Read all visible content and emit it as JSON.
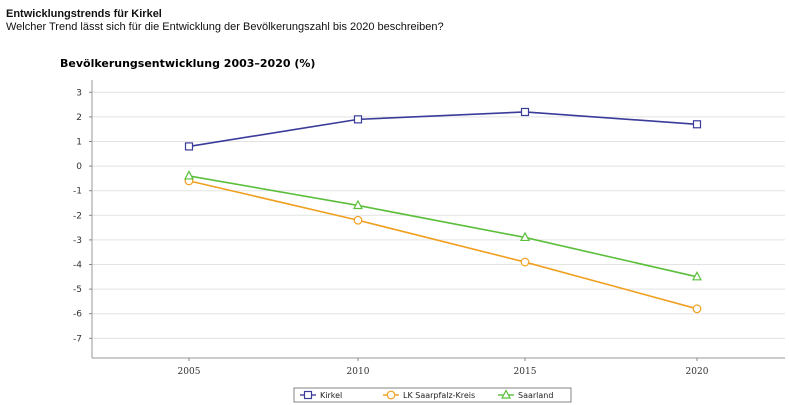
{
  "page": {
    "heading": "Entwicklungstrends für Kirkel",
    "question": "Welcher Trend lässt sich für die Entwicklung der Bevölkerungszahl bis 2020 beschreiben?"
  },
  "chart_data": {
    "type": "line",
    "title": "Bevölkerungsentwicklung 2003–2020 (%)",
    "xlabel": "",
    "ylabel": "",
    "x": [
      "2005",
      "2010",
      "2015",
      "2020"
    ],
    "ylim": [
      -7.8,
      3.5
    ],
    "yticks": [
      "3",
      "2",
      "1",
      "0",
      "-1",
      "-2",
      "-3",
      "-4",
      "-5",
      "-6",
      "-7"
    ],
    "grid": true,
    "legend_position": "bottom",
    "series": [
      {
        "name": "Kirkel",
        "values": [
          0.8,
          1.9,
          2.2,
          1.7
        ],
        "color": "#3b3b9a",
        "marker": "square"
      },
      {
        "name": "LK Saarpfalz-Kreis",
        "values": [
          -0.6,
          -2.2,
          -3.9,
          -5.8
        ],
        "color": "#f0a020",
        "marker": "circle"
      },
      {
        "name": "Saarland",
        "values": [
          -0.4,
          -1.6,
          -2.9,
          -4.5
        ],
        "color": "#5cbf3c",
        "marker": "triangle"
      }
    ]
  }
}
